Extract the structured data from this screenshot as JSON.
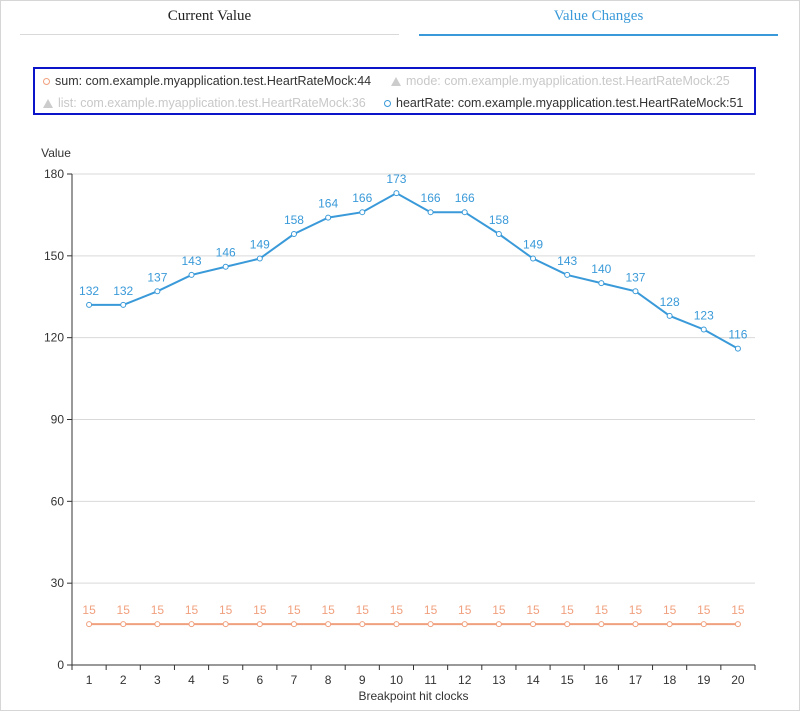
{
  "tabs": [
    {
      "label": "Current Value",
      "active": false
    },
    {
      "label": "Value Changes",
      "active": true
    }
  ],
  "legend": {
    "items": [
      {
        "label": "sum: com.example.myapplication.test.HeartRateMock:44",
        "marker": "circle-icon",
        "color": "#f0a07e",
        "enabled": true
      },
      {
        "label": "mode: com.example.myapplication.test.HeartRateMock:25",
        "marker": "triangle-icon",
        "color": "#cccccc",
        "enabled": false
      },
      {
        "label": "list: com.example.myapplication.test.HeartRateMock:36",
        "marker": "triangle-icon",
        "color": "#cccccc",
        "enabled": false
      },
      {
        "label": "heartRate: com.example.myapplication.test.HeartRateMock:51",
        "marker": "circle-icon",
        "color": "#3a9ad9",
        "enabled": true
      }
    ]
  },
  "chart_data": {
    "type": "line",
    "ylabel": "Value",
    "xlabel": "Breakpoint hit clocks",
    "ylim": [
      0,
      180
    ],
    "yticks": [
      0,
      30,
      60,
      90,
      120,
      150,
      180
    ],
    "grid": true,
    "categories": [
      1,
      2,
      3,
      4,
      5,
      6,
      7,
      8,
      9,
      10,
      11,
      12,
      13,
      14,
      15,
      16,
      17,
      18,
      19,
      20
    ],
    "series": [
      {
        "name": "heartRate: com.example.myapplication.test.HeartRateMock:51",
        "color": "#3a9ad9",
        "values": [
          132,
          132,
          137,
          143,
          146,
          149,
          158,
          164,
          166,
          173,
          166,
          166,
          158,
          149,
          143,
          140,
          137,
          128,
          123,
          116
        ]
      },
      {
        "name": "sum: com.example.myapplication.test.HeartRateMock:44",
        "color": "#f0a07e",
        "values": [
          15,
          15,
          15,
          15,
          15,
          15,
          15,
          15,
          15,
          15,
          15,
          15,
          15,
          15,
          15,
          15,
          15,
          15,
          15,
          15
        ]
      }
    ]
  }
}
